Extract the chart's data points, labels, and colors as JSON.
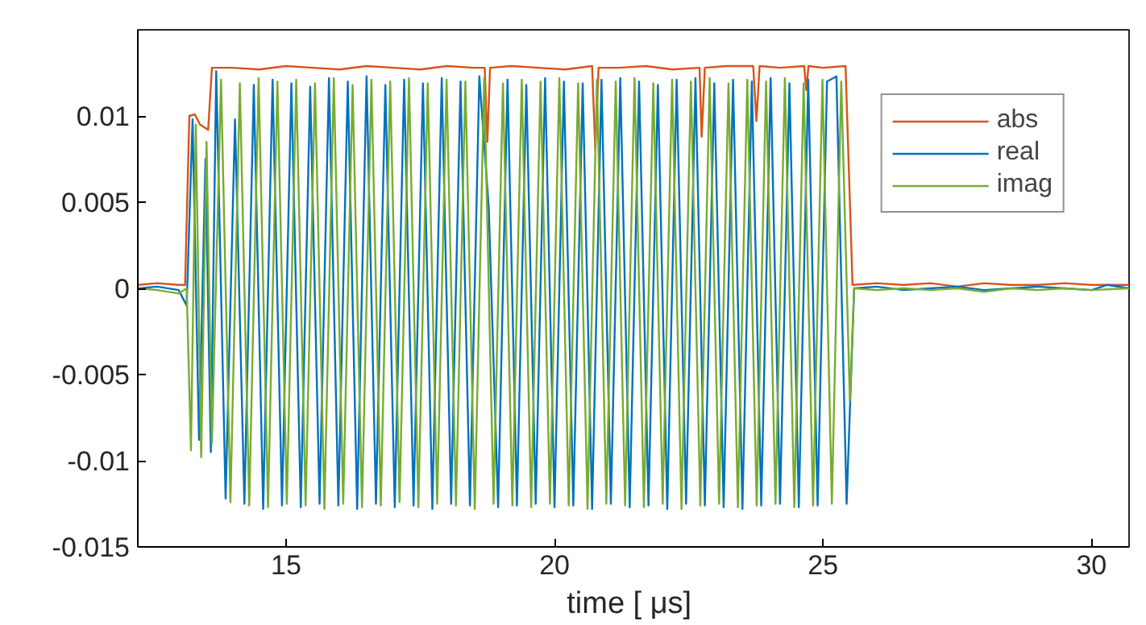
{
  "chart_data": {
    "type": "line",
    "xlabel": "time [  μs]",
    "xlim": [
      12.24,
      30.7
    ],
    "ylim": [
      -0.015,
      0.015
    ],
    "xticks": [
      15,
      20,
      25,
      30
    ],
    "yticks": [
      {
        "value": -0.015,
        "label": "-0.015"
      },
      {
        "value": -0.01,
        "label": "-0.01"
      },
      {
        "value": -0.005,
        "label": "-0.005"
      },
      0,
      {
        "value": 0.005,
        "label": "0.005"
      },
      {
        "value": 0.01,
        "label": "0.01"
      }
    ],
    "grid": false,
    "legend": "top right",
    "marker": "none",
    "line_style": "solid",
    "series": [
      {
        "name": "abs",
        "color": "#d95319",
        "x": [
          12.24,
          12.6,
          13.0,
          13.12,
          13.2,
          13.3,
          13.4,
          13.55,
          13.62,
          14.0,
          14.5,
          15.0,
          15.5,
          16.0,
          16.5,
          17.0,
          17.5,
          18.0,
          18.5,
          18.7,
          18.75,
          18.8,
          19.2,
          19.7,
          20.2,
          20.7,
          20.76,
          20.82,
          21.2,
          21.7,
          22.2,
          22.7,
          22.74,
          22.8,
          23.2,
          23.7,
          23.76,
          23.82,
          24.2,
          24.65,
          24.69,
          24.73,
          25.0,
          25.42,
          25.55,
          26.0,
          26.5,
          27.0,
          27.5,
          28.0,
          28.5,
          29.0,
          29.5,
          30.0,
          30.7
        ],
        "values": [
          0.0002,
          0.0003,
          0.0002,
          0.0002,
          0.01,
          0.0101,
          0.0095,
          0.0092,
          0.0128,
          0.0128,
          0.0127,
          0.0129,
          0.0128,
          0.0127,
          0.0129,
          0.0128,
          0.0127,
          0.0129,
          0.0128,
          0.0128,
          0.0085,
          0.0128,
          0.0129,
          0.0128,
          0.0127,
          0.0129,
          0.008,
          0.0128,
          0.0128,
          0.0129,
          0.0127,
          0.0128,
          0.0088,
          0.0128,
          0.0129,
          0.0129,
          0.0097,
          0.0129,
          0.0128,
          0.0129,
          0.0115,
          0.0129,
          0.0128,
          0.0129,
          0.0002,
          0.0003,
          0.0002,
          0.0003,
          0.0001,
          0.0003,
          0.0002,
          0.0002,
          0.0003,
          0.0002,
          0.0002
        ]
      },
      {
        "name": "real",
        "color": "#0072bd",
        "x": [
          12.24,
          12.6,
          13.0,
          13.15,
          13.26,
          13.38,
          13.5,
          13.6,
          13.7,
          13.875,
          14.05,
          14.225,
          14.4,
          14.575,
          14.75,
          14.925,
          15.1,
          15.275,
          15.45,
          15.625,
          15.8,
          15.975,
          16.15,
          16.325,
          16.5,
          16.675,
          16.85,
          17.025,
          17.2,
          17.375,
          17.55,
          17.725,
          17.9,
          18.075,
          18.25,
          18.425,
          18.6,
          18.775,
          18.95,
          19.125,
          19.3,
          19.475,
          19.65,
          19.825,
          20.0,
          20.175,
          20.35,
          20.525,
          20.7,
          20.875,
          21.05,
          21.225,
          21.4,
          21.575,
          21.75,
          21.925,
          22.1,
          22.275,
          22.45,
          22.625,
          22.8,
          22.975,
          23.15,
          23.325,
          23.5,
          23.675,
          23.85,
          24.025,
          24.2,
          24.375,
          24.55,
          24.725,
          24.9,
          25.075,
          25.25,
          25.44,
          25.58,
          26.0,
          26.5,
          27.0,
          27.5,
          28.0,
          28.5,
          29.0,
          29.5,
          30.0,
          30.3,
          30.7
        ],
        "values": [
          0.0,
          0.0001,
          -0.0001,
          -0.001,
          0.0098,
          -0.0088,
          0.0075,
          -0.0095,
          0.0126,
          -0.0122,
          0.0098,
          -0.0125,
          0.0118,
          -0.0128,
          0.0121,
          -0.0126,
          0.0119,
          -0.0127,
          0.0117,
          -0.0125,
          0.0122,
          -0.0126,
          0.012,
          -0.0128,
          0.0123,
          -0.0125,
          0.0118,
          -0.0127,
          0.0121,
          -0.0126,
          0.0119,
          -0.0128,
          0.0122,
          -0.0125,
          0.012,
          -0.0126,
          0.0123,
          0.0047,
          -0.0127,
          0.0121,
          -0.0126,
          0.0118,
          -0.0125,
          0.0122,
          -0.0127,
          0.012,
          -0.0126,
          0.0119,
          -0.0128,
          0.0121,
          -0.0125,
          0.0122,
          -0.0127,
          0.012,
          -0.0126,
          0.0118,
          -0.0128,
          0.0121,
          -0.0125,
          0.0122,
          -0.0126,
          0.0119,
          -0.0127,
          0.0121,
          -0.0128,
          0.012,
          -0.0126,
          0.0122,
          -0.0125,
          0.0119,
          -0.0127,
          0.0121,
          -0.0126,
          0.012,
          0.0123,
          -0.0125,
          0.0,
          0.0001,
          -0.0001,
          0.0,
          0.0001,
          -0.0001,
          0.0,
          0.0001,
          0.0,
          -0.0001,
          0.0002,
          0.0
        ]
      },
      {
        "name": "imag",
        "color": "#77ac30",
        "x": [
          12.24,
          12.6,
          13.0,
          13.15,
          13.23,
          13.32,
          13.42,
          13.52,
          13.62,
          13.79,
          13.965,
          14.14,
          14.315,
          14.49,
          14.665,
          14.84,
          15.015,
          15.19,
          15.365,
          15.54,
          15.715,
          15.89,
          16.065,
          16.24,
          16.415,
          16.59,
          16.765,
          16.94,
          17.115,
          17.29,
          17.465,
          17.64,
          17.815,
          17.99,
          18.165,
          18.34,
          18.515,
          18.69,
          18.865,
          19.04,
          19.215,
          19.39,
          19.565,
          19.74,
          19.915,
          20.09,
          20.265,
          20.44,
          20.615,
          20.79,
          20.965,
          21.14,
          21.315,
          21.49,
          21.665,
          21.84,
          22.015,
          22.19,
          22.365,
          22.54,
          22.715,
          22.89,
          23.065,
          23.24,
          23.415,
          23.59,
          23.765,
          23.94,
          24.115,
          24.29,
          24.465,
          24.64,
          24.815,
          24.99,
          25.165,
          25.34,
          25.5,
          25.58,
          26.0,
          26.5,
          27.0,
          27.5,
          28.0,
          28.5,
          29.0,
          29.5,
          30.0,
          30.7
        ],
        "values": [
          0.0,
          -0.0001,
          -0.0003,
          0.0,
          -0.0094,
          0.0095,
          -0.0098,
          0.0085,
          -0.009,
          0.0121,
          -0.0124,
          0.0119,
          -0.0126,
          0.0122,
          -0.0127,
          0.012,
          -0.0125,
          0.0121,
          -0.0126,
          0.0119,
          -0.0128,
          0.0122,
          -0.0125,
          0.0118,
          -0.0127,
          0.0121,
          -0.0126,
          0.012,
          -0.0124,
          0.0122,
          -0.0127,
          0.0119,
          -0.0125,
          0.0121,
          -0.0126,
          0.012,
          -0.0128,
          0.0122,
          -0.0125,
          0.0119,
          -0.0126,
          0.0121,
          -0.0127,
          0.012,
          -0.0125,
          0.0122,
          -0.0126,
          0.0119,
          -0.0128,
          0.0121,
          -0.0125,
          0.012,
          -0.0126,
          0.0122,
          -0.0127,
          0.0119,
          -0.0125,
          0.0121,
          -0.0128,
          0.012,
          -0.0126,
          0.0122,
          -0.0125,
          0.0119,
          -0.0127,
          0.0121,
          -0.0126,
          0.012,
          -0.0125,
          0.0122,
          -0.0127,
          0.0119,
          -0.0126,
          0.0121,
          -0.0125,
          0.012,
          -0.0065,
          0.0,
          -0.0001,
          0.0,
          -0.0001,
          0.0,
          -0.0002,
          0.0,
          -0.0001,
          0.0,
          -0.0001,
          0.0
        ]
      }
    ]
  }
}
